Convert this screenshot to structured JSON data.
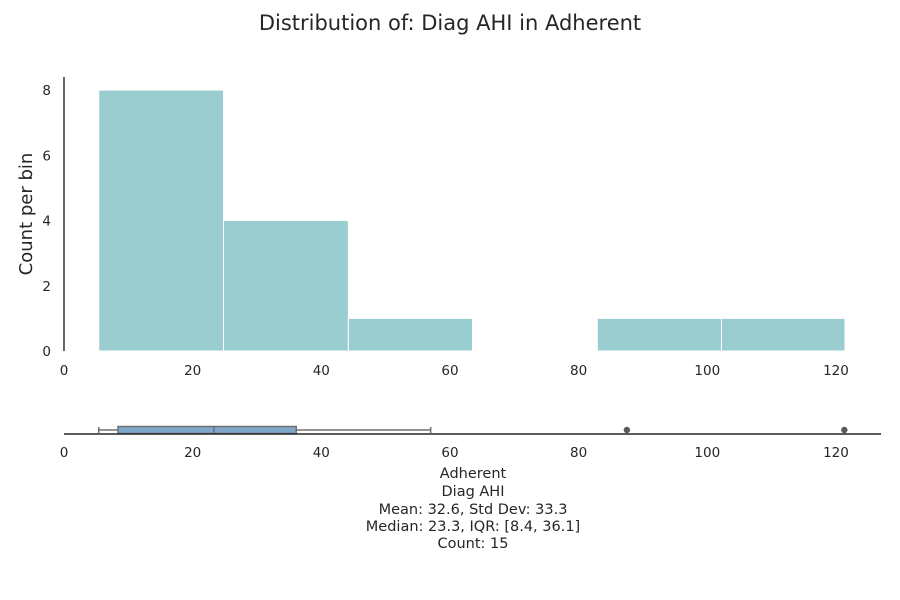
{
  "chart_data": [
    {
      "type": "bar",
      "title": "Distribution of: Diag AHI in Adherent",
      "ylabel": "Count per bin",
      "xlabel": "",
      "bins": [
        {
          "x0": 5.4,
          "x1": 24.8,
          "count": 8
        },
        {
          "x0": 24.8,
          "x1": 44.2,
          "count": 4
        },
        {
          "x0": 44.2,
          "x1": 63.5,
          "count": 1
        },
        {
          "x0": 63.5,
          "x1": 82.9,
          "count": 0
        },
        {
          "x0": 82.9,
          "x1": 102.2,
          "count": 1
        },
        {
          "x0": 102.2,
          "x1": 121.4,
          "count": 1
        }
      ],
      "xlim": [
        0,
        127
      ],
      "ylim": [
        0,
        8.4
      ],
      "xticks": [
        "0",
        "20",
        "40",
        "60",
        "80",
        "100",
        "120"
      ],
      "yticks": [
        "0",
        "2",
        "4",
        "6",
        "8"
      ],
      "grid": false,
      "bar_color": "#99cdcf"
    },
    {
      "type": "boxplot",
      "xlim": [
        0,
        127
      ],
      "xticks": [
        "0",
        "20",
        "40",
        "60",
        "80",
        "100",
        "120"
      ],
      "whisker_low": 5.4,
      "q1": 8.4,
      "median": 23.3,
      "q3": 36.1,
      "whisker_high": 57,
      "outliers": [
        87.5,
        121.3
      ],
      "box_color": "#7ea8cc",
      "line_color": "#707070"
    }
  ],
  "summary": {
    "group": "Adherent",
    "variable": "Diag AHI",
    "mean_std": "Mean: 32.6, Std Dev: 33.3",
    "median_iqr": "Median: 23.3, IQR: [8.4, 36.1]",
    "count": "Count: 15"
  }
}
